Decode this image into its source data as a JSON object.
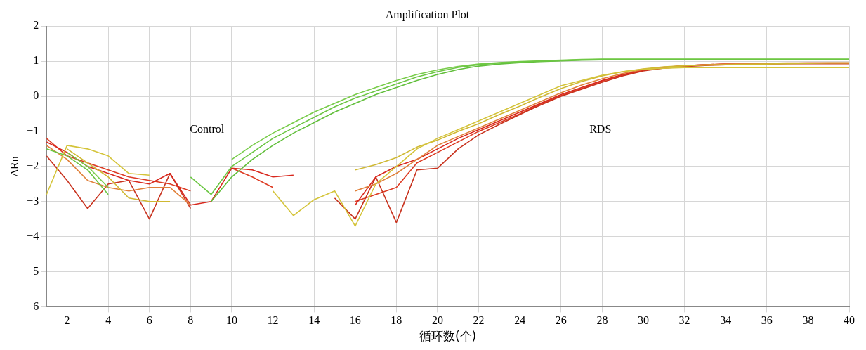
{
  "chart_data": {
    "type": "line",
    "title": "Amplification Plot",
    "xlabel": "循环数(个)",
    "ylabel": "ΔRn",
    "x": [
      1,
      2,
      3,
      4,
      5,
      6,
      7,
      8,
      9,
      10,
      11,
      12,
      13,
      14,
      15,
      16,
      17,
      18,
      19,
      20,
      21,
      22,
      23,
      24,
      25,
      26,
      27,
      28,
      29,
      30,
      31,
      32,
      33,
      34,
      35,
      36,
      37,
      38,
      39,
      40
    ],
    "xlim": [
      1,
      40
    ],
    "xticks": [
      2,
      4,
      6,
      8,
      10,
      12,
      14,
      16,
      18,
      20,
      22,
      24,
      26,
      28,
      30,
      32,
      34,
      36,
      38,
      40
    ],
    "ylim": [
      -6,
      2
    ],
    "yticks": [
      {
        "value": -6,
        "label": "−6"
      },
      {
        "value": -5,
        "label": "−5"
      },
      {
        "value": -4,
        "label": "−4"
      },
      {
        "value": -3,
        "label": "−3"
      },
      {
        "value": -2,
        "label": "−2"
      },
      {
        "value": -1,
        "label": "−1"
      },
      0,
      1,
      2
    ],
    "grid": true,
    "series": [
      {
        "color": "#6cc644",
        "values": [
          -1.5,
          -1.7,
          -2.1,
          -2.8,
          null,
          null,
          null,
          -2.3,
          -2.8,
          -2.0,
          -1.6,
          -1.2,
          -0.9,
          -0.6,
          -0.3,
          -0.05,
          0.15,
          0.35,
          0.55,
          0.7,
          0.82,
          0.9,
          0.95,
          0.98,
          1.0,
          1.02,
          1.04,
          1.05,
          1.05,
          1.05,
          1.05,
          1.05,
          1.05,
          1.05,
          1.05,
          1.05,
          1.05,
          1.05,
          1.05,
          1.05
        ]
      },
      {
        "color": "#78cc4a",
        "values": [
          null,
          -1.6,
          -2.0,
          -2.6,
          null,
          null,
          null,
          null,
          null,
          -1.8,
          -1.4,
          -1.05,
          -0.75,
          -0.45,
          -0.2,
          0.05,
          0.25,
          0.45,
          0.62,
          0.75,
          0.85,
          0.92,
          0.96,
          0.99,
          1.01,
          1.03,
          1.05,
          1.06,
          1.06,
          1.06,
          1.06,
          1.06,
          1.06,
          1.06,
          1.06,
          1.06,
          1.06,
          1.06,
          1.06,
          1.06
        ]
      },
      {
        "color": "#62bf3c",
        "values": [
          null,
          null,
          null,
          null,
          null,
          null,
          null,
          null,
          -3.0,
          -2.3,
          -1.8,
          -1.4,
          -1.05,
          -0.75,
          -0.45,
          -0.2,
          0.05,
          0.25,
          0.45,
          0.62,
          0.76,
          0.86,
          0.92,
          0.96,
          0.99,
          1.01,
          1.03,
          1.04,
          1.04,
          1.04,
          1.04,
          1.04,
          1.04,
          1.04,
          1.04,
          1.04,
          1.04,
          1.04,
          1.04,
          1.04
        ]
      },
      {
        "color": "#d4c43a",
        "values": [
          -2.8,
          -1.4,
          -1.5,
          -1.7,
          -2.2,
          -2.25,
          null,
          null,
          null,
          null,
          null,
          -2.7,
          -3.4,
          -2.95,
          -2.7,
          -3.7,
          -2.5,
          -2.0,
          -1.5,
          -1.2,
          -0.95,
          -0.7,
          -0.45,
          -0.2,
          0.05,
          0.3,
          0.45,
          0.6,
          0.7,
          0.77,
          0.8,
          0.82,
          0.82,
          0.82,
          0.82,
          0.82,
          0.82,
          0.82,
          0.82,
          0.82
        ]
      },
      {
        "color": "#cfb832",
        "values": [
          null,
          -1.5,
          -1.9,
          -2.3,
          -2.9,
          -3.0,
          -3.0,
          null,
          null,
          null,
          null,
          null,
          null,
          null,
          null,
          -2.1,
          -1.95,
          -1.75,
          -1.45,
          -1.25,
          -1.0,
          -0.78,
          -0.52,
          -0.28,
          -0.02,
          0.22,
          0.42,
          0.58,
          0.7,
          0.78,
          0.84,
          0.87,
          0.89,
          0.9,
          0.91,
          0.92,
          0.93,
          0.94,
          0.95,
          0.95
        ]
      },
      {
        "color": "#e0803a",
        "values": [
          -1.4,
          -1.8,
          -2.4,
          -2.6,
          -2.7,
          -2.6,
          -2.6,
          -3.1,
          null,
          null,
          null,
          null,
          null,
          null,
          null,
          -2.7,
          -2.5,
          -2.2,
          -1.8,
          -1.4,
          -1.15,
          -0.9,
          -0.65,
          -0.4,
          -0.15,
          0.1,
          0.32,
          0.5,
          0.65,
          0.76,
          0.83,
          0.87,
          0.9,
          0.92,
          0.93,
          0.94,
          0.95,
          0.95,
          0.95,
          0.95
        ]
      },
      {
        "color": "#d8281e",
        "values": [
          -1.3,
          -1.6,
          -2.0,
          -2.2,
          -2.4,
          -2.5,
          -2.2,
          -3.1,
          -3.0,
          -2.05,
          -2.1,
          -2.3,
          -2.25,
          null,
          null,
          -3.1,
          -2.3,
          -2.0,
          -1.8,
          -1.5,
          -1.2,
          -0.95,
          -0.7,
          -0.45,
          -0.2,
          0.05,
          0.25,
          0.45,
          0.62,
          0.75,
          0.82,
          0.87,
          0.9,
          0.92,
          0.93,
          0.94,
          0.94,
          0.94,
          0.94,
          0.94
        ]
      },
      {
        "color": "#c8321e",
        "values": [
          -1.7,
          -2.4,
          -3.2,
          -2.5,
          -2.4,
          -3.5,
          -2.2,
          -3.2,
          null,
          null,
          null,
          null,
          null,
          null,
          -2.9,
          -3.5,
          -2.3,
          -3.6,
          -2.1,
          -2.05,
          -1.5,
          -1.1,
          -0.8,
          -0.52,
          -0.25,
          0.0,
          0.2,
          0.4,
          0.58,
          0.72,
          0.8,
          0.85,
          0.88,
          0.9,
          0.91,
          0.92,
          0.93,
          0.93,
          0.93,
          0.93
        ]
      },
      {
        "color": "#dd3a22",
        "values": [
          -1.2,
          -1.7,
          -1.9,
          -2.1,
          -2.3,
          -2.4,
          -2.5,
          -2.7,
          null,
          -2.05,
          -2.3,
          -2.6,
          null,
          null,
          null,
          -3.0,
          -2.8,
          -2.6,
          -1.9,
          -1.6,
          -1.3,
          -1.0,
          -0.75,
          -0.5,
          -0.22,
          0.02,
          0.22,
          0.43,
          0.6,
          0.74,
          0.82,
          0.87,
          0.9,
          0.92,
          0.93,
          0.94,
          0.94,
          0.95,
          0.95,
          0.95
        ]
      }
    ],
    "annotations": [
      "Control",
      "RDS"
    ]
  }
}
